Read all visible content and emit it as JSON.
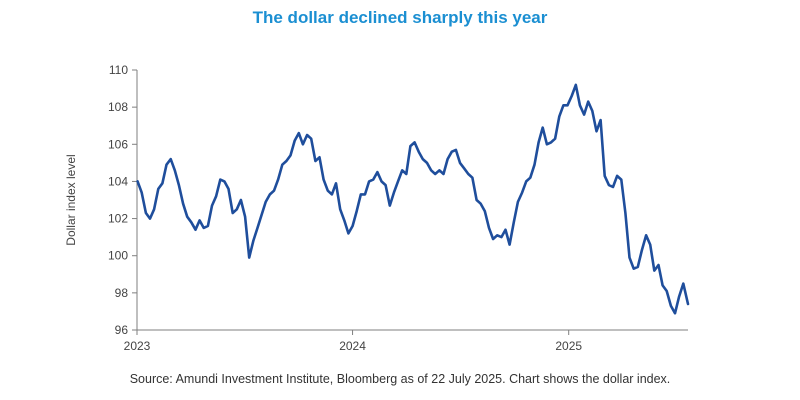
{
  "title": "The dollar declined sharply this year",
  "source": "Source: Amundi Investment Institute, Bloomberg as of 22 July 2025. Chart shows the dollar index.",
  "colors": {
    "title": "#1b8fd2",
    "line": "#1f4e9c",
    "axis": "#7f7f7f",
    "text": "#444444"
  },
  "chart_data": {
    "type": "line",
    "title": "The dollar declined sharply this year",
    "ylabel": "Dollar index level",
    "xlabel": "",
    "ylim": [
      96,
      110
    ],
    "yticks": [
      96,
      98,
      100,
      102,
      104,
      106,
      108,
      110
    ],
    "xlim": [
      "2023-01-01",
      "2025-07-22"
    ],
    "xticks": [
      {
        "date": "2023-01-01",
        "label": "2023"
      },
      {
        "date": "2024-01-01",
        "label": "2024"
      },
      {
        "date": "2025-01-01",
        "label": "2025"
      }
    ],
    "grid": false,
    "legend": "none",
    "series": [
      {
        "x": [
          "2023-01-02",
          "2023-01-09",
          "2023-01-16",
          "2023-01-23",
          "2023-01-30",
          "2023-02-06",
          "2023-02-13",
          "2023-02-20",
          "2023-02-27",
          "2023-03-06",
          "2023-03-13",
          "2023-03-20",
          "2023-03-27",
          "2023-04-03",
          "2023-04-10",
          "2023-04-17",
          "2023-04-24",
          "2023-05-01",
          "2023-05-08",
          "2023-05-15",
          "2023-05-22",
          "2023-05-29",
          "2023-06-05",
          "2023-06-12",
          "2023-06-19",
          "2023-06-26",
          "2023-07-03",
          "2023-07-10",
          "2023-07-17",
          "2023-07-24",
          "2023-07-31",
          "2023-08-07",
          "2023-08-14",
          "2023-08-21",
          "2023-08-28",
          "2023-09-04",
          "2023-09-11",
          "2023-09-18",
          "2023-09-25",
          "2023-10-02",
          "2023-10-09",
          "2023-10-16",
          "2023-10-23",
          "2023-10-30",
          "2023-11-06",
          "2023-11-13",
          "2023-11-20",
          "2023-11-27",
          "2023-12-04",
          "2023-12-11",
          "2023-12-18",
          "2023-12-25",
          "2024-01-01",
          "2024-01-08",
          "2024-01-15",
          "2024-01-22",
          "2024-01-29",
          "2024-02-05",
          "2024-02-12",
          "2024-02-19",
          "2024-02-26",
          "2024-03-04",
          "2024-03-11",
          "2024-03-18",
          "2024-03-25",
          "2024-04-01",
          "2024-04-08",
          "2024-04-15",
          "2024-04-22",
          "2024-04-29",
          "2024-05-06",
          "2024-05-13",
          "2024-05-20",
          "2024-05-27",
          "2024-06-03",
          "2024-06-10",
          "2024-06-17",
          "2024-06-24",
          "2024-07-01",
          "2024-07-08",
          "2024-07-15",
          "2024-07-22",
          "2024-07-29",
          "2024-08-05",
          "2024-08-12",
          "2024-08-19",
          "2024-08-26",
          "2024-09-02",
          "2024-09-09",
          "2024-09-16",
          "2024-09-23",
          "2024-09-30",
          "2024-10-07",
          "2024-10-14",
          "2024-10-21",
          "2024-10-28",
          "2024-11-04",
          "2024-11-11",
          "2024-11-18",
          "2024-11-25",
          "2024-12-02",
          "2024-12-09",
          "2024-12-16",
          "2024-12-23",
          "2024-12-30",
          "2025-01-06",
          "2025-01-13",
          "2025-01-20",
          "2025-01-27",
          "2025-02-03",
          "2025-02-10",
          "2025-02-17",
          "2025-02-24",
          "2025-03-03",
          "2025-03-10",
          "2025-03-17",
          "2025-03-24",
          "2025-03-31",
          "2025-04-07",
          "2025-04-14",
          "2025-04-21",
          "2025-04-28",
          "2025-05-05",
          "2025-05-12",
          "2025-05-19",
          "2025-05-26",
          "2025-06-02",
          "2025-06-09",
          "2025-06-16",
          "2025-06-23",
          "2025-06-30",
          "2025-07-07",
          "2025-07-14",
          "2025-07-22"
        ],
        "y": [
          104.0,
          103.4,
          102.3,
          102.0,
          102.5,
          103.6,
          103.9,
          104.9,
          105.2,
          104.6,
          103.8,
          102.8,
          102.1,
          101.8,
          101.4,
          101.9,
          101.5,
          101.6,
          102.7,
          103.2,
          104.1,
          104.0,
          103.6,
          102.3,
          102.5,
          103.0,
          102.1,
          99.9,
          100.8,
          101.5,
          102.2,
          102.9,
          103.3,
          103.5,
          104.1,
          104.9,
          105.1,
          105.4,
          106.2,
          106.6,
          106.0,
          106.5,
          106.3,
          105.1,
          105.3,
          104.1,
          103.5,
          103.3,
          103.9,
          102.5,
          101.9,
          101.2,
          101.6,
          102.4,
          103.3,
          103.3,
          104.0,
          104.1,
          104.5,
          104.0,
          103.8,
          102.7,
          103.4,
          104.0,
          104.6,
          104.4,
          105.9,
          106.1,
          105.6,
          105.2,
          105.0,
          104.6,
          104.4,
          104.6,
          104.4,
          105.2,
          105.6,
          105.7,
          105.0,
          104.7,
          104.4,
          104.2,
          103.0,
          102.8,
          102.4,
          101.5,
          100.9,
          101.1,
          101.0,
          101.4,
          100.6,
          101.8,
          102.9,
          103.4,
          104.0,
          104.2,
          104.9,
          106.1,
          106.9,
          106.0,
          106.1,
          106.3,
          107.5,
          108.1,
          108.1,
          108.6,
          109.2,
          108.1,
          107.6,
          108.3,
          107.8,
          106.7,
          107.3,
          104.3,
          103.8,
          103.7,
          104.3,
          104.1,
          102.3,
          99.9,
          99.3,
          99.4,
          100.3,
          101.1,
          100.6,
          99.2,
          99.5,
          98.4,
          98.1,
          97.3,
          96.9,
          97.8,
          98.5,
          97.4
        ]
      }
    ]
  }
}
